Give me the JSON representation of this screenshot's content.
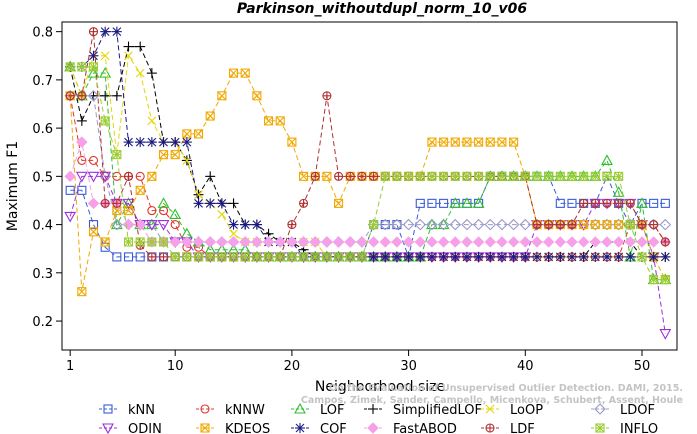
{
  "chart_data": {
    "type": "line",
    "title": "Parkinson_withoutdupl_norm_10_v06",
    "xlabel": "Neighborhood size",
    "ylabel": "Maximum F1",
    "xlim": [
      0.3,
      53.0
    ],
    "ylim": [
      0.14,
      0.82
    ],
    "xticks": [
      1,
      10,
      20,
      30,
      40,
      50
    ],
    "yticks": [
      0.2,
      0.3,
      0.4,
      0.5,
      0.6,
      0.7,
      0.8
    ],
    "grid": false,
    "legend_position": "bottom",
    "x": [
      1,
      2,
      3,
      4,
      5,
      6,
      7,
      8,
      9,
      10,
      11,
      12,
      13,
      14,
      15,
      16,
      17,
      18,
      19,
      20,
      21,
      22,
      23,
      24,
      25,
      26,
      27,
      28,
      29,
      30,
      31,
      32,
      33,
      34,
      35,
      36,
      37,
      38,
      39,
      40,
      41,
      42,
      43,
      44,
      45,
      46,
      47,
      48,
      49,
      50,
      51,
      52
    ],
    "series": [
      {
        "name": "kNN",
        "color": "#3a5bd9",
        "marker": "square",
        "values": [
          0.471,
          0.471,
          0.4,
          0.353,
          0.333,
          0.333,
          0.333,
          0.333,
          0.333,
          0.333,
          0.333,
          0.333,
          0.333,
          0.333,
          0.333,
          0.333,
          0.333,
          0.333,
          0.333,
          0.333,
          0.333,
          0.333,
          0.333,
          0.333,
          0.333,
          0.333,
          0.4,
          0.4,
          0.4,
          0.333,
          0.444,
          0.444,
          0.444,
          0.444,
          0.444,
          0.444,
          0.5,
          0.5,
          0.5,
          0.5,
          0.5,
          0.5,
          0.444,
          0.444,
          0.444,
          0.444,
          0.5,
          0.444,
          0.4,
          0.444,
          0.444,
          0.444
        ]
      },
      {
        "name": "kNNW",
        "color": "#e0342a",
        "marker": "circle",
        "values": [
          0.667,
          0.533,
          0.533,
          0.5,
          0.5,
          0.5,
          0.5,
          0.429,
          0.429,
          0.4,
          0.353,
          0.353,
          0.333,
          0.333,
          0.333,
          0.333,
          0.333,
          0.333,
          0.333,
          0.333,
          0.333,
          0.333,
          0.333,
          0.333,
          0.333,
          0.333,
          0.333,
          0.333,
          0.333,
          0.333,
          0.333,
          0.333,
          0.333,
          0.333,
          0.333,
          0.333,
          0.333,
          0.333,
          0.333,
          0.333,
          0.333,
          0.333,
          0.333,
          0.333,
          0.333,
          0.333,
          0.333,
          0.333,
          0.4,
          0.4,
          0.4,
          0.364
        ]
      },
      {
        "name": "LOF",
        "color": "#2fbf2f",
        "marker": "triangle",
        "values": [
          0.727,
          0.667,
          0.714,
          0.714,
          0.4,
          0.444,
          0.4,
          0.4,
          0.444,
          0.421,
          0.381,
          0.364,
          0.348,
          0.348,
          0.348,
          0.348,
          0.333,
          0.333,
          0.333,
          0.333,
          0.333,
          0.333,
          0.333,
          0.333,
          0.333,
          0.333,
          0.333,
          0.333,
          0.333,
          0.333,
          0.333,
          0.4,
          0.4,
          0.444,
          0.444,
          0.444,
          0.5,
          0.5,
          0.5,
          0.5,
          0.5,
          0.5,
          0.5,
          0.5,
          0.5,
          0.5,
          0.533,
          0.467,
          0.333,
          0.444,
          0.286,
          0.286
        ]
      },
      {
        "name": "SimplifiedLOF",
        "color": "#000000",
        "marker": "plus",
        "values": [
          0.727,
          0.615,
          0.667,
          0.667,
          0.667,
          0.769,
          0.769,
          0.714,
          0.571,
          0.571,
          0.533,
          0.462,
          0.5,
          0.444,
          0.444,
          0.4,
          0.4,
          0.381,
          0.364,
          0.364,
          0.348,
          0.333,
          0.333,
          0.333,
          0.333,
          0.333,
          0.333,
          0.333,
          0.333,
          0.333,
          0.333,
          0.333,
          0.333,
          0.333,
          0.333,
          0.333,
          0.333,
          0.333,
          0.333,
          0.333,
          0.333,
          0.333,
          0.333,
          0.333,
          0.333,
          0.364,
          0.364,
          0.364,
          0.364,
          0.333,
          0.333,
          0.333
        ]
      },
      {
        "name": "LoOP",
        "color": "#e6d600",
        "marker": "cross",
        "values": [
          0.727,
          0.667,
          0.75,
          0.75,
          0.545,
          0.75,
          0.714,
          0.615,
          0.571,
          0.571,
          0.533,
          0.462,
          0.444,
          0.421,
          0.381,
          0.364,
          0.364,
          0.364,
          0.364,
          0.364,
          0.364,
          0.364,
          0.333,
          0.333,
          0.333,
          0.333,
          0.333,
          0.333,
          0.333,
          0.333,
          0.333,
          0.333,
          0.333,
          0.333,
          0.333,
          0.333,
          0.333,
          0.333,
          0.333,
          0.333,
          0.333,
          0.333,
          0.333,
          0.333,
          0.333,
          0.333,
          0.333,
          0.333,
          0.333,
          0.333,
          0.333,
          0.333
        ]
      },
      {
        "name": "LDOF",
        "color": "#9a9ac8",
        "marker": "diamond",
        "values": [
          0.667,
          0.667,
          0.667,
          0.5,
          0.4,
          0.4,
          0.4,
          0.4,
          0.364,
          0.364,
          0.364,
          0.364,
          0.364,
          0.364,
          0.364,
          0.364,
          0.364,
          0.364,
          0.364,
          0.364,
          0.364,
          0.364,
          0.364,
          0.364,
          0.364,
          0.364,
          0.4,
          0.4,
          0.4,
          0.4,
          0.4,
          0.4,
          0.4,
          0.4,
          0.4,
          0.4,
          0.4,
          0.4,
          0.4,
          0.4,
          0.4,
          0.4,
          0.4,
          0.4,
          0.4,
          0.4,
          0.4,
          0.4,
          0.4,
          0.4,
          0.4,
          0.4
        ]
      },
      {
        "name": "ODIN",
        "color": "#9b30d9",
        "marker": "triangle-down",
        "values": [
          0.417,
          0.5,
          0.5,
          0.5,
          0.444,
          0.444,
          0.4,
          0.4,
          0.4,
          0.364,
          0.364,
          0.333,
          0.333,
          0.333,
          0.333,
          0.333,
          0.333,
          0.333,
          0.333,
          0.333,
          0.333,
          0.333,
          0.333,
          0.333,
          0.333,
          0.333,
          0.333,
          0.333,
          0.333,
          0.333,
          0.333,
          0.333,
          0.333,
          0.333,
          0.333,
          0.333,
          0.333,
          0.333,
          0.333,
          0.333,
          0.4,
          0.4,
          0.4,
          0.4,
          0.4,
          0.444,
          0.444,
          0.444,
          0.444,
          0.4,
          0.333,
          0.174
        ]
      },
      {
        "name": "KDEOS",
        "color": "#f0a800",
        "marker": "square-x",
        "values": [
          0.667,
          0.261,
          0.385,
          0.364,
          0.429,
          0.429,
          0.471,
          0.5,
          0.545,
          0.545,
          0.588,
          0.588,
          0.625,
          0.667,
          0.714,
          0.714,
          0.667,
          0.615,
          0.615,
          0.571,
          0.5,
          0.5,
          0.5,
          0.444,
          0.5,
          0.5,
          0.5,
          0.5,
          0.5,
          0.5,
          0.5,
          0.571,
          0.571,
          0.571,
          0.571,
          0.571,
          0.571,
          0.571,
          0.571,
          0.5,
          0.4,
          0.4,
          0.4,
          0.4,
          0.4,
          0.4,
          0.4,
          0.4,
          0.4,
          0.4,
          0.333,
          0.286
        ]
      },
      {
        "name": "COF",
        "color": "#1a1a80",
        "marker": "asterisk",
        "values": [
          0.727,
          0.727,
          0.75,
          0.8,
          0.8,
          0.571,
          0.571,
          0.571,
          0.571,
          0.571,
          0.571,
          0.444,
          0.444,
          0.444,
          0.4,
          0.4,
          0.4,
          0.364,
          0.364,
          0.364,
          0.333,
          0.333,
          0.333,
          0.333,
          0.333,
          0.333,
          0.333,
          0.333,
          0.333,
          0.333,
          0.333,
          0.333,
          0.333,
          0.333,
          0.333,
          0.333,
          0.333,
          0.333,
          0.333,
          0.333,
          0.333,
          0.333,
          0.333,
          0.333,
          0.333,
          0.333,
          0.333,
          0.333,
          0.333,
          0.333,
          0.333,
          0.333
        ]
      },
      {
        "name": "FastABOD",
        "color": "#f5a0e8",
        "marker": "diamond-filled",
        "values": [
          0.5,
          0.571,
          0.444,
          0.444,
          0.444,
          0.4,
          0.4,
          0.364,
          0.364,
          0.364,
          0.364,
          0.364,
          0.364,
          0.364,
          0.364,
          0.364,
          0.364,
          0.364,
          0.364,
          0.364,
          0.364,
          0.364,
          0.364,
          0.364,
          0.364,
          0.364,
          0.364,
          0.364,
          0.364,
          0.364,
          0.364,
          0.364,
          0.364,
          0.364,
          0.364,
          0.364,
          0.364,
          0.364,
          0.364,
          0.364,
          0.364,
          0.364,
          0.364,
          0.364,
          0.364,
          0.364,
          0.364,
          0.364,
          0.364,
          0.364,
          0.364,
          0.364
        ]
      },
      {
        "name": "LDF",
        "color": "#b03030",
        "marker": "circle-plus",
        "values": [
          0.667,
          0.667,
          0.8,
          0.444,
          0.444,
          0.5,
          0.357,
          0.333,
          0.333,
          0.333,
          0.333,
          0.333,
          0.333,
          0.333,
          0.333,
          0.333,
          0.333,
          0.333,
          0.333,
          0.4,
          0.444,
          0.5,
          0.667,
          0.5,
          0.5,
          0.5,
          0.5,
          0.5,
          0.5,
          0.5,
          0.5,
          0.5,
          0.5,
          0.5,
          0.5,
          0.5,
          0.5,
          0.5,
          0.5,
          0.5,
          0.4,
          0.4,
          0.4,
          0.4,
          0.444,
          0.444,
          0.444,
          0.444,
          0.444,
          0.4,
          0.4,
          0.364
        ]
      },
      {
        "name": "INFLO",
        "color": "#9acd32",
        "marker": "star-square",
        "values": [
          0.727,
          0.727,
          0.727,
          0.615,
          0.545,
          0.364,
          0.364,
          0.364,
          0.364,
          0.333,
          0.333,
          0.333,
          0.333,
          0.333,
          0.333,
          0.333,
          0.333,
          0.333,
          0.333,
          0.333,
          0.333,
          0.333,
          0.333,
          0.333,
          0.333,
          0.333,
          0.4,
          0.5,
          0.5,
          0.5,
          0.5,
          0.5,
          0.5,
          0.5,
          0.5,
          0.5,
          0.5,
          0.5,
          0.5,
          0.5,
          0.5,
          0.5,
          0.5,
          0.5,
          0.5,
          0.5,
          0.5,
          0.5,
          0.4,
          0.333,
          0.286,
          0.286
        ]
      }
    ],
    "legend": [
      [
        "kNN",
        "kNNW",
        "LOF",
        "SimplifiedLOF",
        "LoOP",
        "LDOF"
      ],
      [
        "ODIN",
        "KDEOS",
        "COF",
        "FastABOD",
        "LDF",
        "INFLO"
      ]
    ],
    "watermark_lines": [
      "Campos, Zimek, Sander, Campello, Micenkova, Schubert, Assent, Houle",
      "On the Evaluation of Unsupervised Outlier Detection. DAMI, 2015."
    ]
  }
}
